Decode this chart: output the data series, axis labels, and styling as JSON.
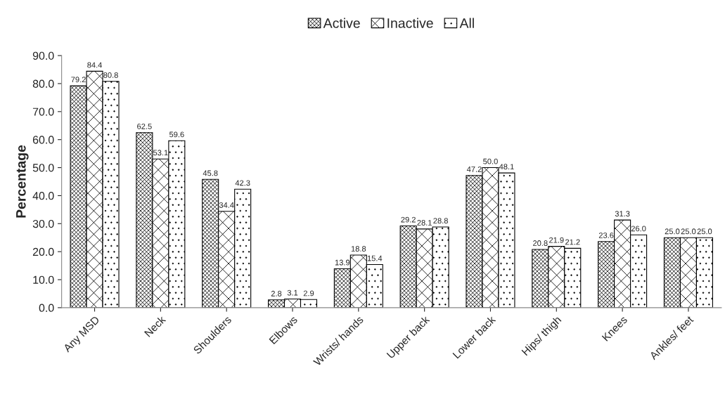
{
  "chart_data": {
    "type": "bar",
    "categories": [
      "Any MSD",
      "Neck",
      "Shoulders",
      "Elbows",
      "Wrists/ hands",
      "Upper back",
      "Lower back",
      "Hips/ thigh",
      "Knees",
      "Ankles/ feet"
    ],
    "ylabel": "Percentage",
    "series": [
      {
        "name": "Active",
        "color": "#000000",
        "values": [
          79.2,
          62.5,
          45.8,
          2.8,
          13.9,
          29.2,
          47.2,
          20.8,
          23.6,
          25.0
        ],
        "value_labels": [
          "79.2",
          "62.5",
          "45.8",
          "2.8",
          "13.9",
          "29.2",
          "47.2",
          "20.8",
          "23.6",
          "25.0"
        ]
      },
      {
        "name": "Inactive",
        "color": "#000000",
        "values": [
          84.4,
          53.1,
          34.4,
          3.1,
          18.8,
          28.1,
          50.0,
          21.9,
          31.3,
          25.0
        ],
        "value_labels": [
          "84.4",
          "53.1",
          "34.4",
          "3.1",
          "18.8",
          "28.1",
          "50.0",
          "21.9",
          "31.3",
          "25.0"
        ]
      },
      {
        "name": "All",
        "color": "#000000",
        "values": [
          80.8,
          59.6,
          42.3,
          2.9,
          15.4,
          28.8,
          48.1,
          21.2,
          26.0,
          25.0
        ],
        "value_labels": [
          "80.8",
          "59.6",
          "42.3",
          "2.9",
          "15.4",
          "28.8",
          "48.1",
          "21.2",
          "26.0",
          "25.0"
        ]
      }
    ],
    "ylim": [
      0,
      90
    ],
    "yticks": [
      {
        "value": 0,
        "label": "0.0"
      },
      {
        "value": 10,
        "label": "10.0"
      },
      {
        "value": 20,
        "label": "20.0"
      },
      {
        "value": 30,
        "label": "30.0"
      },
      {
        "value": 40,
        "label": "40.0"
      },
      {
        "value": 50,
        "label": "50.0"
      },
      {
        "value": 60,
        "label": "60.0"
      },
      {
        "value": 70,
        "label": "70.0"
      },
      {
        "value": 80,
        "label": "80.0"
      },
      {
        "value": 90,
        "label": "90.0"
      }
    ],
    "legend": "top",
    "grid": false
  }
}
